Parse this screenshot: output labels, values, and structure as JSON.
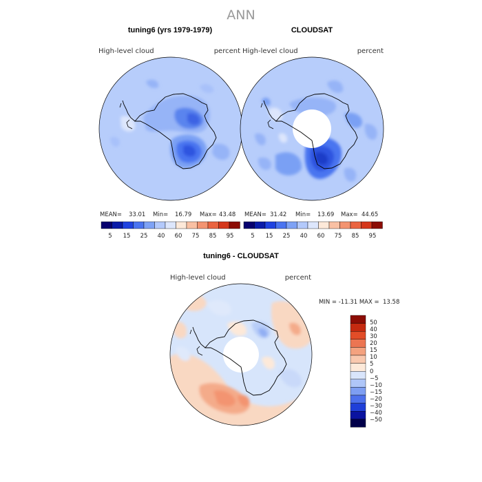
{
  "figure_title": "ANN",
  "colors": {
    "abs_scale": [
      "#08006e",
      "#0a1ba8",
      "#1f42e0",
      "#4a74f0",
      "#7ea2f5",
      "#b3c9fb",
      "#dde6fc",
      "#fde9d9",
      "#f9c0a3",
      "#f39471",
      "#ea6440",
      "#d5371b",
      "#8c0d05"
    ],
    "diff_scale": [
      "#01004a",
      "#0a13a0",
      "#1f3fd8",
      "#4d70ec",
      "#7e9ef2",
      "#afc6f8",
      "#d9e5fb",
      "#fde9d9",
      "#f9c8ae",
      "#f4a27f",
      "#ec7552",
      "#e24d28",
      "#c52a10",
      "#8c0d05"
    ],
    "ocean_abs": "#b7cdfb",
    "ocean_diff": "#d7e5fb",
    "land_warm": "#f9d8c2",
    "pole_hole": "#ffffff"
  },
  "chart_data": [
    {
      "type": "heatmap",
      "projection": "south-polar-stereographic",
      "title": "tuning6 (yrs 1979-1979)",
      "variable": "High-level cloud",
      "units": "percent",
      "stats": {
        "mean_label": "MEAN=",
        "mean": "33.01",
        "min_label": "Min=",
        "min": "16.79",
        "max_label": "Max=",
        "max": "43.48"
      },
      "colorbar_ticks": [
        "5",
        "15",
        "25",
        "40",
        "60",
        "75",
        "85",
        "95"
      ]
    },
    {
      "type": "heatmap",
      "projection": "south-polar-stereographic",
      "title": "CLOUDSAT",
      "variable": "High-level cloud",
      "units": "percent",
      "stats": {
        "mean_label": "MEAN=",
        "mean": "31.42",
        "min_label": "Min=",
        "min": "13.69",
        "max_label": "Max=",
        "max": "44.65"
      },
      "colorbar_ticks": [
        "5",
        "15",
        "25",
        "40",
        "60",
        "75",
        "85",
        "95"
      ]
    },
    {
      "type": "heatmap",
      "projection": "south-polar-stereographic",
      "title": "tuning6 - CLOUDSAT",
      "variable": "High-level cloud",
      "units": "percent",
      "stats_text": "MIN = -11.31 MAX =  13.58",
      "colorbar_ticks": [
        "50",
        "40",
        "30",
        "20",
        "15",
        "10",
        "5",
        "0",
        "−5",
        "−10",
        "−15",
        "−20",
        "−30",
        "−40",
        "−50"
      ]
    }
  ]
}
